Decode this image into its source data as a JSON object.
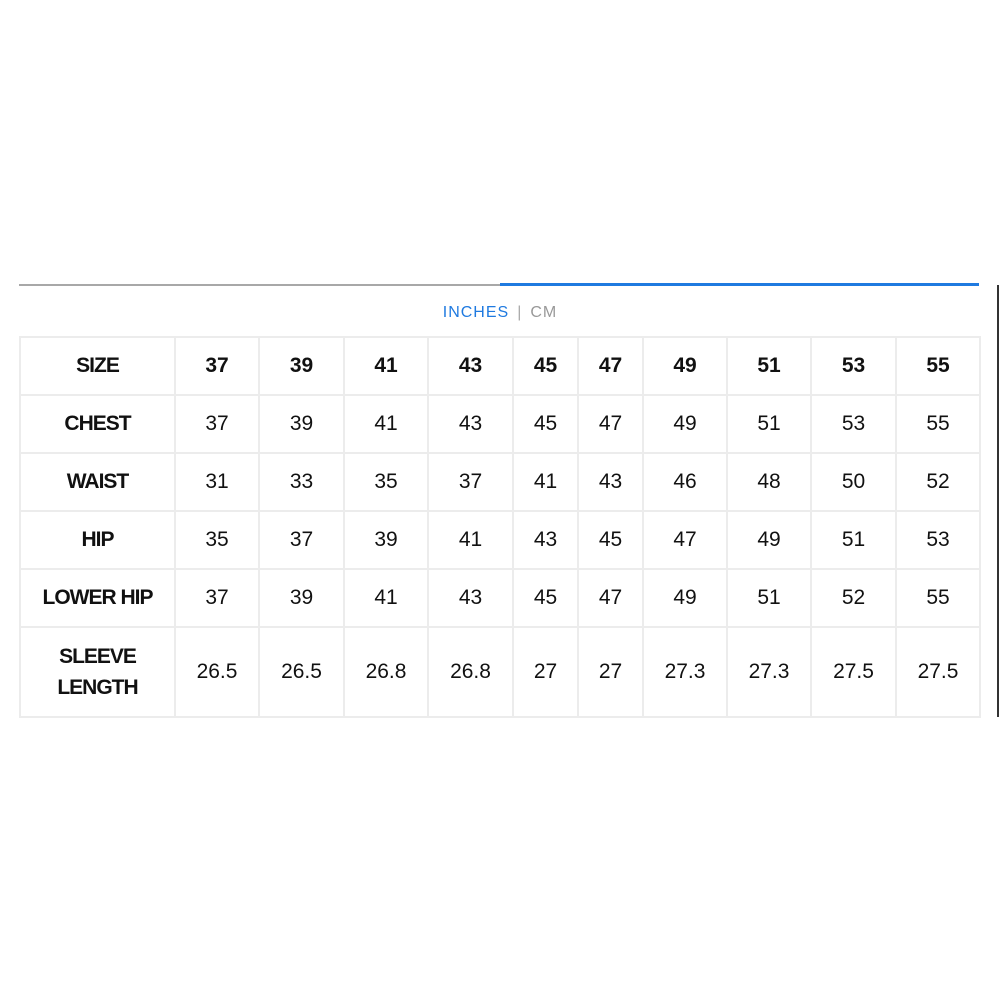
{
  "units": {
    "active": "INCHES",
    "separator": "|",
    "inactive": "CM",
    "accent": "#1f7ae0"
  },
  "table": {
    "header": {
      "label": "SIZE",
      "values": [
        "37",
        "39",
        "41",
        "43",
        "45",
        "47",
        "49",
        "51",
        "53",
        "55"
      ]
    },
    "rows": [
      {
        "label": "CHEST",
        "values": [
          "37",
          "39",
          "41",
          "43",
          "45",
          "47",
          "49",
          "51",
          "53",
          "55"
        ]
      },
      {
        "label": "WAIST",
        "values": [
          "31",
          "33",
          "35",
          "37",
          "41",
          "43",
          "46",
          "48",
          "50",
          "52"
        ]
      },
      {
        "label": "HIP",
        "values": [
          "35",
          "37",
          "39",
          "41",
          "43",
          "45",
          "47",
          "49",
          "51",
          "53"
        ]
      },
      {
        "label": "LOWER HIP",
        "values": [
          "37",
          "39",
          "41",
          "43",
          "45",
          "47",
          "49",
          "51",
          "52",
          "55"
        ]
      },
      {
        "label_line1": "SLEEVE",
        "label_line2": "LENGTH",
        "values": [
          "26.5",
          "26.5",
          "26.8",
          "26.8",
          "27",
          "27",
          "27.3",
          "27.3",
          "27.5",
          "27.5"
        ]
      }
    ]
  }
}
